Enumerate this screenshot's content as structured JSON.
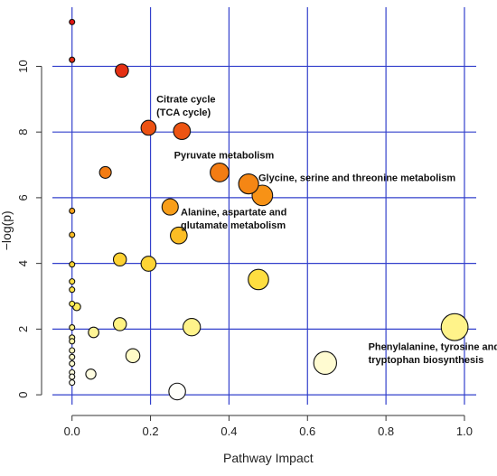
{
  "chart_data": {
    "type": "scatter",
    "title": "",
    "xlabel": "Pathway Impact",
    "ylabel": "−log(p)",
    "xlim": [
      -0.05,
      1.03
    ],
    "ylim": [
      -0.3,
      11.8
    ],
    "xticks": [
      0.0,
      0.2,
      0.4,
      0.6,
      0.8,
      1.0
    ],
    "xtick_labels": [
      "0.0",
      "0.2",
      "0.4",
      "0.6",
      "0.8",
      "1.0"
    ],
    "yticks": [
      0,
      2,
      4,
      6,
      8,
      10
    ],
    "ytick_labels": [
      "0",
      "2",
      "4",
      "6",
      "8",
      "10"
    ],
    "grid": true,
    "grid_color": "#3340cc",
    "legend": "none",
    "color_scale": "yellow-to-red by -log(p)",
    "point_size_encodes": "pathway impact",
    "points": [
      {
        "x": 0.0,
        "y": 11.35
      },
      {
        "x": 0.0,
        "y": 10.2
      },
      {
        "x": 0.127,
        "y": 9.87
      },
      {
        "x": 0.195,
        "y": 8.13
      },
      {
        "x": 0.28,
        "y": 8.03
      },
      {
        "x": 0.085,
        "y": 6.77
      },
      {
        "x": 0.376,
        "y": 6.77
      },
      {
        "x": 0.45,
        "y": 6.42
      },
      {
        "x": 0.485,
        "y": 6.07
      },
      {
        "x": 0.25,
        "y": 5.72
      },
      {
        "x": 0.0,
        "y": 5.6
      },
      {
        "x": 0.272,
        "y": 4.85
      },
      {
        "x": 0.0,
        "y": 4.87
      },
      {
        "x": 0.122,
        "y": 4.12
      },
      {
        "x": 0.195,
        "y": 3.99
      },
      {
        "x": 0.0,
        "y": 3.97
      },
      {
        "x": 0.0,
        "y": 3.45
      },
      {
        "x": 0.475,
        "y": 3.51
      },
      {
        "x": 0.0,
        "y": 3.2
      },
      {
        "x": 0.0,
        "y": 2.77
      },
      {
        "x": 0.012,
        "y": 2.68
      },
      {
        "x": 0.122,
        "y": 2.15
      },
      {
        "x": 0.305,
        "y": 2.06
      },
      {
        "x": 0.975,
        "y": 2.06
      },
      {
        "x": 0.0,
        "y": 2.05
      },
      {
        "x": 0.055,
        "y": 1.9
      },
      {
        "x": 0.0,
        "y": 1.74
      },
      {
        "x": 0.0,
        "y": 1.63
      },
      {
        "x": 0.0,
        "y": 1.35
      },
      {
        "x": 0.0,
        "y": 1.15
      },
      {
        "x": 0.155,
        "y": 1.19
      },
      {
        "x": 0.645,
        "y": 0.97
      },
      {
        "x": 0.0,
        "y": 0.95
      },
      {
        "x": 0.0,
        "y": 0.68
      },
      {
        "x": 0.048,
        "y": 0.63
      },
      {
        "x": 0.0,
        "y": 0.55
      },
      {
        "x": 0.0,
        "y": 0.37
      },
      {
        "x": 0.268,
        "y": 0.1
      }
    ],
    "annotations": [
      {
        "text": "Citrate cycle",
        "x": 0.215,
        "y": 8.9
      },
      {
        "text": "(TCA cycle)",
        "x": 0.215,
        "y": 8.5
      },
      {
        "text": "Pyruvate metabolism",
        "x": 0.26,
        "y": 7.2
      },
      {
        "text": "Glycine, serine and threonine metabolism",
        "x": 0.475,
        "y": 6.5
      },
      {
        "text": "Alanine, aspartate and",
        "x": 0.277,
        "y": 5.46
      },
      {
        "text": "glutamate metabolism",
        "x": 0.277,
        "y": 5.06
      },
      {
        "text": "Phenylalanine, tyrosine and",
        "x": 0.755,
        "y": 1.37
      },
      {
        "text": "tryptophan biosynthesis",
        "x": 0.755,
        "y": 0.97
      }
    ]
  }
}
